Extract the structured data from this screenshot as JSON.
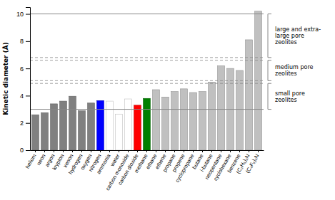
{
  "chart_data": {
    "type": "bar",
    "categories": [
      "helium",
      "neon",
      "argon",
      "krypton",
      "xenon",
      "hydrogen",
      "oxygen",
      "nitrogen",
      "ammonia",
      "water",
      "carbon monoxide",
      "carbon dioxide",
      "methane",
      "ethane",
      "ethene",
      "propane",
      "propene",
      "cyclopropane",
      "butane",
      "i-butane",
      "neopentane",
      "cyclohexane",
      "benzene",
      "(C₂H₅)₃N",
      "(C₄F₉)₃N"
    ],
    "values": [
      2.6,
      2.75,
      3.4,
      3.6,
      3.96,
      2.89,
      3.46,
      3.64,
      3.6,
      2.65,
      3.76,
      3.3,
      3.8,
      4.44,
      3.9,
      4.3,
      4.5,
      4.23,
      4.3,
      5.0,
      6.2,
      6.0,
      5.85,
      8.1,
      10.2
    ],
    "colors": [
      "#808080",
      "#808080",
      "#808080",
      "#808080",
      "#808080",
      "#808080",
      "#808080",
      "#0000FF",
      "#FFFFFF",
      "#FFFFFF",
      "#FFFFFF",
      "#FF0000",
      "#008000",
      "#C0C0C0",
      "#C0C0C0",
      "#C0C0C0",
      "#C0C0C0",
      "#C0C0C0",
      "#C0C0C0",
      "#C0C0C0",
      "#C0C0C0",
      "#C0C0C0",
      "#C0C0C0",
      "#C0C0C0",
      "#C0C0C0"
    ],
    "y_label": "Kinetic diameter (Å)",
    "ylim": [
      0,
      10.5
    ],
    "yticks": [
      0,
      2,
      4,
      6,
      8,
      10
    ],
    "hlines_solid": [
      3.0,
      10.0
    ],
    "hlines_dashed": [
      4.9,
      5.1,
      6.6,
      6.8
    ],
    "annotations": [
      {
        "text": "large and extra-\nlarge pore\nzeolites",
        "y_top": 10.0,
        "y_bottom": 6.8
      },
      {
        "text": "medium pore\nzeolites",
        "y_top": 6.6,
        "y_bottom": 5.1
      },
      {
        "text": "small pore\nzeolites",
        "y_top": 4.9,
        "y_bottom": 3.0
      }
    ]
  }
}
